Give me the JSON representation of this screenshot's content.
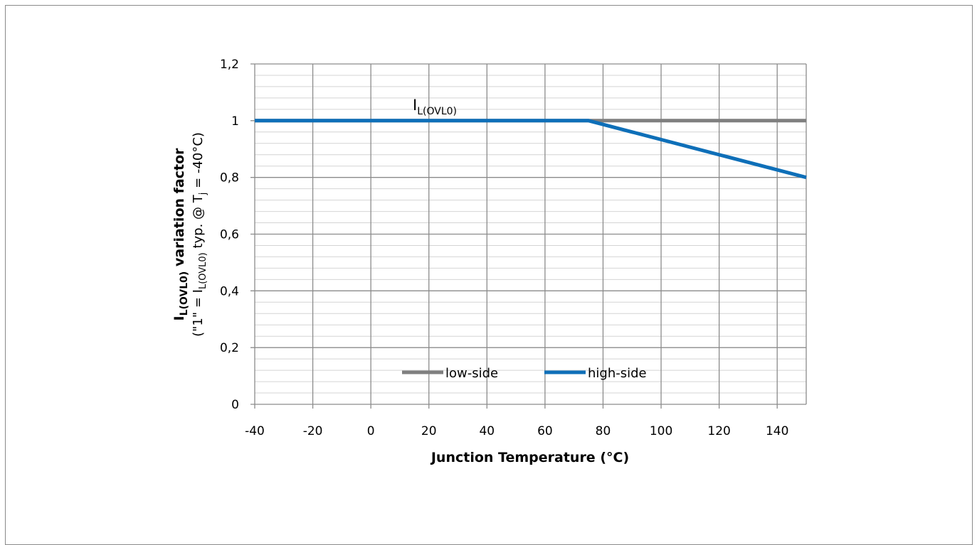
{
  "chart_data": {
    "type": "line",
    "x": [
      -40,
      75,
      150
    ],
    "series": [
      {
        "name": "low-side",
        "values": [
          1,
          1,
          1
        ],
        "color": "#7f7f7f"
      },
      {
        "name": "high-side",
        "values": [
          1,
          1,
          0.8
        ],
        "color": "#0e6fb8"
      }
    ],
    "xlabel": "Junction Temperature (°C)",
    "ylabel": {
      "line1_main": "I",
      "line1_sub": "L(OVL0)",
      "line1_rest": " variation factor",
      "line2_a": "(\"1\" = I",
      "line2_sub": "L(OVL0)",
      "line2_b": " typ. @ T",
      "line2_sub2": "j",
      "line2_c": " = -40°C)"
    },
    "xlim": [
      -40,
      150
    ],
    "ylim": [
      0,
      1.2
    ],
    "xticks": [
      "-40",
      "-20",
      "0",
      "20",
      "40",
      "60",
      "80",
      "100",
      "120",
      "140"
    ],
    "yticks": [
      "0",
      "0,2",
      "0,4",
      "0,6",
      "0,8",
      "1",
      "1,2"
    ],
    "annotation": {
      "main": "I",
      "sub": "L(OVL0)"
    },
    "grid": true,
    "legend_position": "bottom-inside"
  }
}
